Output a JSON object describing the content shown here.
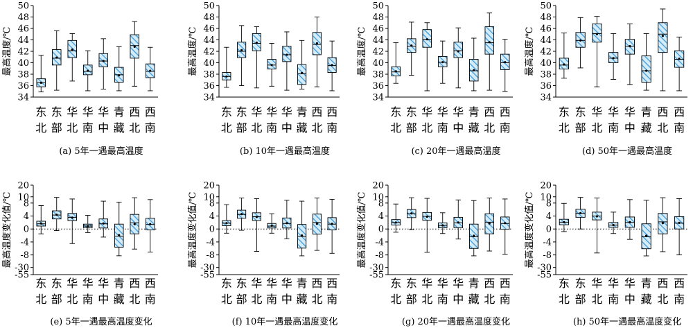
{
  "chart_data": [
    {
      "type": "box",
      "caption": "(a) 5年一遇最高温度",
      "ylabel": "最高温度/℃",
      "ylim": [
        34,
        50
      ],
      "yticks": [
        "34",
        "36",
        "38",
        "40",
        "42",
        "44",
        "46",
        "48",
        "50"
      ],
      "categories": [
        {
          "top": "东",
          "bottom": "北"
        },
        {
          "top": "东",
          "bottom": "部"
        },
        {
          "top": "华",
          "bottom": "北"
        },
        {
          "top": "华",
          "bottom": "南"
        },
        {
          "top": "华",
          "bottom": "中"
        },
        {
          "top": "青",
          "bottom": "藏"
        },
        {
          "top": "西",
          "bottom": "北"
        },
        {
          "top": "西",
          "bottom": "南"
        }
      ],
      "boxes": [
        {
          "min": 34.9,
          "q1": 35.8,
          "median": 36.5,
          "q3": 37.2,
          "max": 41.3,
          "mean": 36.5
        },
        {
          "min": 35.2,
          "q1": 39.6,
          "median": 40.8,
          "q3": 42.3,
          "max": 45.6,
          "mean": 40.9
        },
        {
          "min": 36.8,
          "q1": 40.9,
          "median": 42.1,
          "q3": 43.9,
          "max": 45.1,
          "mean": 42.3
        },
        {
          "min": 35.1,
          "q1": 37.9,
          "median": 38.5,
          "q3": 39.6,
          "max": 42.1,
          "mean": 38.6
        },
        {
          "min": 35.4,
          "q1": 39.3,
          "median": 40.3,
          "q3": 41.6,
          "max": 44.2,
          "mean": 40.3
        },
        {
          "min": 35.1,
          "q1": 36.6,
          "median": 37.9,
          "q3": 39.2,
          "max": 42.8,
          "mean": 37.8
        },
        {
          "min": 35.9,
          "q1": 40.8,
          "median": 43.0,
          "q3": 44.9,
          "max": 47.2,
          "mean": 42.8
        },
        {
          "min": 35.1,
          "q1": 37.4,
          "median": 38.5,
          "q3": 39.8,
          "max": 42.7,
          "mean": 38.6
        }
      ]
    },
    {
      "type": "box",
      "caption": "(b) 10年一遇最高温度",
      "ylabel": "最高温度/℃",
      "ylim": [
        34,
        50
      ],
      "yticks": [
        "34",
        "36",
        "38",
        "40",
        "42",
        "44",
        "46",
        "48",
        "50"
      ],
      "categories": [
        {
          "top": "东",
          "bottom": "北"
        },
        {
          "top": "东",
          "bottom": "部"
        },
        {
          "top": "华",
          "bottom": "北"
        },
        {
          "top": "华",
          "bottom": "南"
        },
        {
          "top": "华",
          "bottom": "中"
        },
        {
          "top": "青",
          "bottom": "藏"
        },
        {
          "top": "西",
          "bottom": "北"
        },
        {
          "top": "西",
          "bottom": "南"
        }
      ],
      "boxes": [
        {
          "min": 35.7,
          "q1": 37.0,
          "median": 37.6,
          "q3": 38.3,
          "max": 42.7,
          "mean": 37.6
        },
        {
          "min": 36.0,
          "q1": 40.9,
          "median": 42.0,
          "q3": 43.6,
          "max": 46.5,
          "mean": 42.2
        },
        {
          "min": 35.6,
          "q1": 42.1,
          "median": 43.4,
          "q3": 45.1,
          "max": 46.3,
          "mean": 43.5
        },
        {
          "min": 35.9,
          "q1": 38.9,
          "median": 39.6,
          "q3": 40.6,
          "max": 43.4,
          "mean": 39.6
        },
        {
          "min": 35.2,
          "q1": 40.2,
          "median": 41.4,
          "q3": 42.9,
          "max": 45.4,
          "mean": 41.4
        },
        {
          "min": 35.4,
          "q1": 36.2,
          "median": 38.1,
          "q3": 39.7,
          "max": 43.9,
          "mean": 38.2
        },
        {
          "min": 35.8,
          "q1": 41.4,
          "median": 43.2,
          "q3": 45.3,
          "max": 48.0,
          "mean": 43.4
        },
        {
          "min": 35.1,
          "q1": 38.3,
          "median": 39.5,
          "q3": 40.9,
          "max": 43.8,
          "mean": 39.6
        }
      ]
    },
    {
      "type": "box",
      "caption": "(c) 20年一遇最高温度",
      "ylabel": "最高温度/℃",
      "ylim": [
        34,
        50
      ],
      "yticks": [
        "34",
        "36",
        "38",
        "40",
        "42",
        "44",
        "46",
        "48",
        "50"
      ],
      "categories": [
        {
          "top": "东",
          "bottom": "北"
        },
        {
          "top": "东",
          "bottom": "部"
        },
        {
          "top": "华",
          "bottom": "北"
        },
        {
          "top": "华",
          "bottom": "南"
        },
        {
          "top": "华",
          "bottom": "中"
        },
        {
          "top": "青",
          "bottom": "藏"
        },
        {
          "top": "西",
          "bottom": "北"
        },
        {
          "top": "西",
          "bottom": "南"
        }
      ],
      "boxes": [
        {
          "min": 36.4,
          "q1": 37.7,
          "median": 38.4,
          "q3": 39.3,
          "max": 43.5,
          "mean": 38.5
        },
        {
          "min": 37.8,
          "q1": 41.8,
          "median": 42.9,
          "q3": 44.2,
          "max": 47.1,
          "mean": 43.0
        },
        {
          "min": 35.1,
          "q1": 42.7,
          "median": 44.1,
          "q3": 45.8,
          "max": 47.0,
          "mean": 44.1
        },
        {
          "min": 36.4,
          "q1": 39.3,
          "median": 40.1,
          "q3": 41.1,
          "max": 43.8,
          "mean": 40.1
        },
        {
          "min": 35.6,
          "q1": 40.9,
          "median": 42.1,
          "q3": 43.6,
          "max": 46.1,
          "mean": 42.0
        },
        {
          "min": 35.1,
          "q1": 36.8,
          "median": 38.6,
          "q3": 40.6,
          "max": 44.3,
          "mean": 38.7
        },
        {
          "min": 35.2,
          "q1": 41.5,
          "median": 43.5,
          "q3": 46.3,
          "max": 48.7,
          "mean": 43.6
        },
        {
          "min": 35.0,
          "q1": 38.8,
          "median": 40.0,
          "q3": 41.5,
          "max": 44.1,
          "mean": 40.1
        }
      ]
    },
    {
      "type": "box",
      "caption": "(d) 50年一遇最高温度",
      "ylabel": "最高温度/℃",
      "ylim": [
        34,
        50
      ],
      "yticks": [
        "34",
        "36",
        "38",
        "40",
        "42",
        "44",
        "46",
        "48",
        "50"
      ],
      "categories": [
        {
          "top": "东",
          "bottom": "北"
        },
        {
          "top": "东",
          "bottom": "部"
        },
        {
          "top": "华",
          "bottom": "北"
        },
        {
          "top": "华",
          "bottom": "南"
        },
        {
          "top": "华",
          "bottom": "中"
        },
        {
          "top": "青",
          "bottom": "藏"
        },
        {
          "top": "西",
          "bottom": "北"
        },
        {
          "top": "西",
          "bottom": "南"
        }
      ],
      "boxes": [
        {
          "min": 37.3,
          "q1": 38.9,
          "median": 39.6,
          "q3": 40.8,
          "max": 45.2,
          "mean": 39.7
        },
        {
          "min": 39.1,
          "q1": 42.7,
          "median": 43.9,
          "q3": 45.3,
          "max": 47.9,
          "mean": 43.9
        },
        {
          "min": 35.8,
          "q1": 43.6,
          "median": 45.1,
          "q3": 46.8,
          "max": 48.1,
          "mean": 45.0
        },
        {
          "min": 37.1,
          "q1": 40.0,
          "median": 40.8,
          "q3": 41.8,
          "max": 45.1,
          "mean": 40.8
        },
        {
          "min": 36.2,
          "q1": 41.5,
          "median": 42.9,
          "q3": 44.1,
          "max": 46.8,
          "mean": 42.9
        },
        {
          "min": 35.2,
          "q1": 36.6,
          "median": 38.6,
          "q3": 41.2,
          "max": 45.1,
          "mean": 38.6
        },
        {
          "min": 35.1,
          "q1": 41.8,
          "median": 45.0,
          "q3": 47.0,
          "max": 49.4,
          "mean": 44.7
        },
        {
          "min": 35.1,
          "q1": 39.2,
          "median": 40.6,
          "q3": 42.1,
          "max": 44.5,
          "mean": 40.7
        }
      ]
    },
    {
      "type": "box",
      "caption": "(e) 5年一遇最高温度变化",
      "ylabel": "最高温度变化值/℃",
      "ylim": [
        -55,
        20
      ],
      "yticks": [
        "20",
        "10",
        "8",
        "4",
        "0",
        "-4",
        "-8",
        "-30",
        "-55"
      ],
      "categories": [
        {
          "top": "东",
          "bottom": "北"
        },
        {
          "top": "东",
          "bottom": "部"
        },
        {
          "top": "华",
          "bottom": "北"
        },
        {
          "top": "华",
          "bottom": "南"
        },
        {
          "top": "华",
          "bottom": "中"
        },
        {
          "top": "青",
          "bottom": "藏"
        },
        {
          "top": "西",
          "bottom": "北"
        },
        {
          "top": "西",
          "bottom": "南"
        }
      ],
      "boxes": [
        {
          "min": -1.5,
          "q1": 0.9,
          "median": 1.6,
          "q3": 2.4,
          "max": 7.2,
          "mean": 1.7
        },
        {
          "min": -0.5,
          "q1": 3.1,
          "median": 4.3,
          "q3": 5.6,
          "max": 9.8,
          "mean": 4.4
        },
        {
          "min": -4.5,
          "q1": 2.6,
          "median": 3.6,
          "q3": 4.8,
          "max": 9.3,
          "mean": 3.5
        },
        {
          "min": -1.1,
          "q1": 0.4,
          "median": 0.9,
          "q3": 1.5,
          "max": 4.2,
          "mean": 0.9
        },
        {
          "min": -2.5,
          "q1": 0.3,
          "median": 1.6,
          "q3": 3.1,
          "max": 8.6,
          "mean": 1.7
        },
        {
          "min": -9.5,
          "q1": -5.6,
          "median": -2.2,
          "q3": 1.5,
          "max": 8.3,
          "mean": -1.9
        },
        {
          "min": -6.2,
          "q1": -1.5,
          "median": 1.9,
          "q3": 4.5,
          "max": 9.7,
          "mean": 1.5
        },
        {
          "min": -7.1,
          "q1": -0.3,
          "median": 1.4,
          "q3": 3.3,
          "max": 9.1,
          "mean": 1.5
        }
      ]
    },
    {
      "type": "box",
      "caption": "(f) 10年一遇最高温度变化",
      "ylabel": "最高温度变化值/℃",
      "ylim": [
        -55,
        20
      ],
      "yticks": [
        "20",
        "10",
        "8",
        "4",
        "0",
        "-4",
        "-8",
        "-30",
        "-55"
      ],
      "categories": [
        {
          "top": "东",
          "bottom": "北"
        },
        {
          "top": "东",
          "bottom": "部"
        },
        {
          "top": "华",
          "bottom": "北"
        },
        {
          "top": "华",
          "bottom": "南"
        },
        {
          "top": "华",
          "bottom": "中"
        },
        {
          "top": "青",
          "bottom": "藏"
        },
        {
          "top": "西",
          "bottom": "北"
        },
        {
          "top": "西",
          "bottom": "南"
        }
      ],
      "boxes": [
        {
          "min": -1.3,
          "q1": 1.0,
          "median": 1.8,
          "q3": 2.6,
          "max": 7.5,
          "mean": 1.8
        },
        {
          "min": -0.4,
          "q1": 3.3,
          "median": 4.5,
          "q3": 5.8,
          "max": 9.6,
          "mean": 4.6
        },
        {
          "min": -6.9,
          "q1": 2.6,
          "median": 3.8,
          "q3": 5.0,
          "max": 9.4,
          "mean": 3.7
        },
        {
          "min": -1.3,
          "q1": 0.3,
          "median": 0.9,
          "q3": 1.7,
          "max": 4.7,
          "mean": 1.0
        },
        {
          "min": -3.0,
          "q1": 0.3,
          "median": 1.7,
          "q3": 3.4,
          "max": 8.9,
          "mean": 1.8
        },
        {
          "min": -9.6,
          "q1": -5.9,
          "median": -2.3,
          "q3": 1.4,
          "max": 8.6,
          "mean": -2.0
        },
        {
          "min": -6.6,
          "q1": -1.6,
          "median": 2.0,
          "q3": 4.6,
          "max": 9.6,
          "mean": 1.6
        },
        {
          "min": -7.5,
          "q1": -0.3,
          "median": 1.5,
          "q3": 3.5,
          "max": 9.2,
          "mean": 1.6
        }
      ]
    },
    {
      "type": "box",
      "caption": "(g) 20年一遇最高温度变化",
      "ylabel": "最高温度变化值/℃",
      "ylim": [
        -55,
        20
      ],
      "yticks": [
        "20",
        "10",
        "8",
        "4",
        "0",
        "-4",
        "-8",
        "-30",
        "-55"
      ],
      "categories": [
        {
          "top": "东",
          "bottom": "北"
        },
        {
          "top": "东",
          "bottom": "部"
        },
        {
          "top": "华",
          "bottom": "北"
        },
        {
          "top": "华",
          "bottom": "南"
        },
        {
          "top": "华",
          "bottom": "中"
        },
        {
          "top": "青",
          "bottom": "藏"
        },
        {
          "top": "西",
          "bottom": "北"
        },
        {
          "top": "西",
          "bottom": "南"
        }
      ],
      "boxes": [
        {
          "min": -1.0,
          "q1": 1.2,
          "median": 2.0,
          "q3": 2.9,
          "max": 7.7,
          "mean": 2.0
        },
        {
          "min": -0.2,
          "q1": 3.5,
          "median": 4.7,
          "q3": 6.0,
          "max": 9.7,
          "mean": 4.8
        },
        {
          "min": -7.2,
          "q1": 2.7,
          "median": 3.9,
          "q3": 5.1,
          "max": 9.5,
          "mean": 3.8
        },
        {
          "min": -1.4,
          "q1": 0.4,
          "median": 1.1,
          "q3": 1.9,
          "max": 5.0,
          "mean": 1.1
        },
        {
          "min": -3.1,
          "q1": 0.4,
          "median": 1.9,
          "q3": 3.6,
          "max": 9.0,
          "mean": 2.0
        },
        {
          "min": -9.6,
          "q1": -6.0,
          "median": -2.4,
          "q3": 1.5,
          "max": 8.8,
          "mean": -2.1
        },
        {
          "min": -6.8,
          "q1": -1.5,
          "median": 2.1,
          "q3": 4.7,
          "max": 9.6,
          "mean": 1.7
        },
        {
          "min": -7.8,
          "q1": -0.1,
          "median": 1.7,
          "q3": 3.7,
          "max": 9.3,
          "mean": 1.8
        }
      ]
    },
    {
      "type": "box",
      "caption": "(h) 50年一遇最高温度变化",
      "ylabel": "最高温度变化值/℃",
      "ylim": [
        -55,
        20
      ],
      "yticks": [
        "20",
        "10",
        "8",
        "4",
        "0",
        "-4",
        "-8",
        "-30",
        "-55"
      ],
      "categories": [
        {
          "top": "东",
          "bottom": "北"
        },
        {
          "top": "东",
          "bottom": "部"
        },
        {
          "top": "华",
          "bottom": "北"
        },
        {
          "top": "华",
          "bottom": "南"
        },
        {
          "top": "华",
          "bottom": "中"
        },
        {
          "top": "青",
          "bottom": "藏"
        },
        {
          "top": "西",
          "bottom": "北"
        },
        {
          "top": "西",
          "bottom": "南"
        }
      ],
      "boxes": [
        {
          "min": -0.8,
          "q1": 1.3,
          "median": 2.1,
          "q3": 3.0,
          "max": 7.9,
          "mean": 2.1
        },
        {
          "min": 0.0,
          "q1": 3.6,
          "median": 4.8,
          "q3": 6.1,
          "max": 9.8,
          "mean": 4.9
        },
        {
          "min": -7.4,
          "q1": 2.8,
          "median": 4.0,
          "q3": 5.2,
          "max": 9.6,
          "mean": 3.9
        },
        {
          "min": -1.4,
          "q1": 0.5,
          "median": 1.2,
          "q3": 2.0,
          "max": 5.2,
          "mean": 1.2
        },
        {
          "min": -3.2,
          "q1": 0.5,
          "median": 2.0,
          "q3": 3.7,
          "max": 9.1,
          "mean": 2.1
        },
        {
          "min": -9.7,
          "q1": -6.1,
          "median": -2.4,
          "q3": 1.6,
          "max": 8.9,
          "mean": -2.1
        },
        {
          "min": -7.0,
          "q1": -1.5,
          "median": 2.2,
          "q3": 4.8,
          "max": 9.7,
          "mean": 1.8
        },
        {
          "min": -8.0,
          "q1": 0.0,
          "median": 1.8,
          "q3": 3.8,
          "max": 9.4,
          "mean": 1.9
        }
      ]
    }
  ],
  "colors": {
    "box_fill": "#d4ebf8",
    "hatch": "#3f9ad8",
    "stroke": "#000000"
  }
}
